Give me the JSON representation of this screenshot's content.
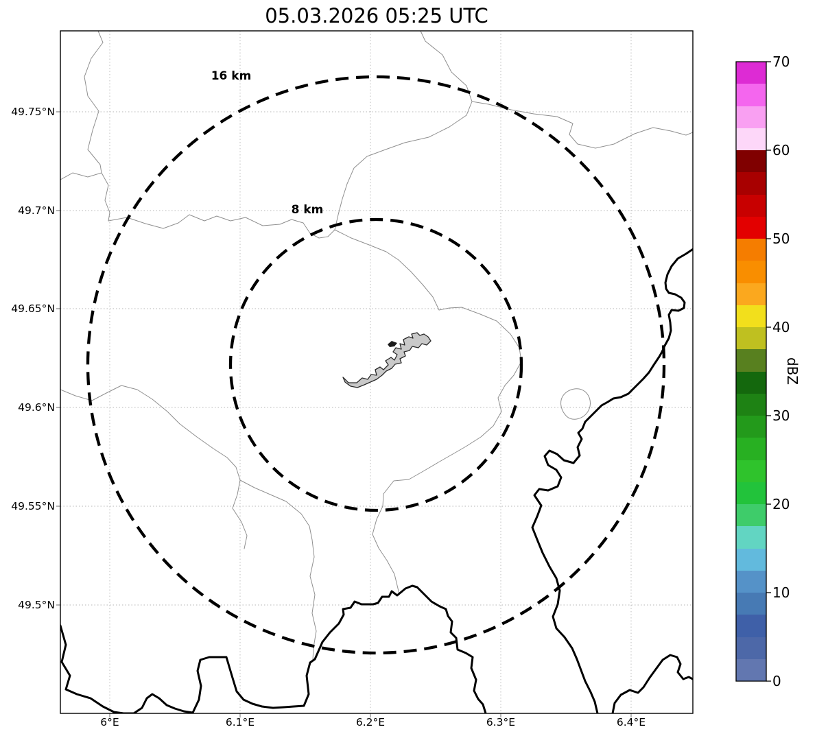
{
  "title": "05.03.2026 05:25 UTC",
  "map": {
    "ring_labels": {
      "outer": "16 km",
      "inner": "8 km"
    },
    "x_tick_labels": [
      "6°E",
      "6.1°E",
      "6.2°E",
      "6.3°E",
      "6.4°E"
    ],
    "y_tick_labels": [
      "49.75°N",
      "49.7°N",
      "49.65°N",
      "49.6°N",
      "49.55°N",
      "49.5°N"
    ]
  },
  "colorbar": {
    "label": "dBZ",
    "tick_labels_bottom_to_top": [
      "0",
      "10",
      "20",
      "30",
      "40",
      "50",
      "60",
      "70"
    ],
    "min_dbz": 0,
    "max_dbz": 70,
    "segment_step_dbz": 2.5,
    "segment_colors_bottom_to_top": [
      "#6277b0",
      "#4d68a8",
      "#3f60a8",
      "#477ab4",
      "#5592c8",
      "#62badd",
      "#62d5c2",
      "#3ecc6a",
      "#22c33b",
      "#2fc32c",
      "#28b022",
      "#239a1b",
      "#1e8214",
      "#14680d",
      "#58801f",
      "#bfc020",
      "#f2df1c",
      "#fba81e",
      "#f98e00",
      "#f57d00",
      "#e30000",
      "#c80000",
      "#a80000",
      "#800000",
      "#fdd7f9",
      "#f9a0f2",
      "#f466ee",
      "#dd2bd4"
    ]
  },
  "chart_data": {
    "type": "heatmap",
    "title": "05.03.2026 05:25 UTC",
    "description": "Radar reflectivity map (no reflectivity echoes visible; clear field). Basemap shows administrative borders (thin gray), country border / Moselle river (thick black), airport outline polygon (gray) at map center, and dashed radar range rings.",
    "x_axis": {
      "label": "",
      "tick_labels": [
        "6°E",
        "6.1°E",
        "6.2°E",
        "6.3°E",
        "6.4°E"
      ],
      "range_deg_east": [
        5.962,
        6.447
      ]
    },
    "y_axis": {
      "label": "",
      "tick_labels": [
        "49.75°N",
        "49.7°N",
        "49.65°N",
        "49.6°N",
        "49.55°N",
        "49.5°N"
      ],
      "range_deg_north": [
        49.446,
        49.791
      ]
    },
    "colorbar": {
      "label": "dBZ",
      "range": [
        0,
        70
      ],
      "tick_step": 10,
      "segment_step": 2.5
    },
    "range_rings_km": [
      8,
      16
    ],
    "ring_center_estimate": {
      "lon_deg_east": 6.204,
      "lat_deg_north": 49.623
    },
    "reflectivity_echoes": "none visible",
    "grid": "dotted graticule at labeled ticks"
  }
}
